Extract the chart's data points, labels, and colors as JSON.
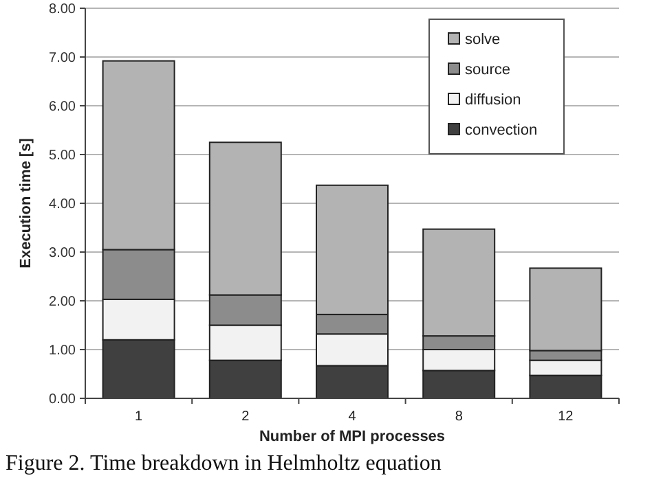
{
  "chart_data": {
    "type": "bar",
    "stacked": true,
    "xlabel": "Number of MPI processes",
    "ylabel": "Execution time [s]",
    "categories": [
      "1",
      "2",
      "4",
      "8",
      "12"
    ],
    "series": [
      {
        "name": "convection",
        "color": "#404040",
        "values": [
          1.2,
          0.78,
          0.67,
          0.57,
          0.47
        ]
      },
      {
        "name": "diffusion",
        "color": "#f2f2f2",
        "values": [
          0.83,
          0.72,
          0.65,
          0.43,
          0.31
        ]
      },
      {
        "name": "source",
        "color": "#8c8c8c",
        "values": [
          1.02,
          0.62,
          0.4,
          0.28,
          0.2
        ]
      },
      {
        "name": "solve",
        "color": "#b3b3b3",
        "values": [
          3.87,
          3.13,
          2.65,
          2.19,
          1.69
        ]
      }
    ],
    "ylim": [
      0,
      8
    ],
    "yticks": [
      {
        "value": 0,
        "label": "0.00"
      },
      {
        "value": 1,
        "label": "1.00"
      },
      {
        "value": 2,
        "label": "2.00"
      },
      {
        "value": 3,
        "label": "3.00"
      },
      {
        "value": 4,
        "label": "4.00"
      },
      {
        "value": 5,
        "label": "5.00"
      },
      {
        "value": 6,
        "label": "6.00"
      },
      {
        "value": 7,
        "label": "7.00"
      },
      {
        "value": 8,
        "label": "8.00"
      }
    ],
    "grid": "y",
    "legend": "top right",
    "annotations": [
      "Figure 2. Time breakdown in Helmholtz equation"
    ]
  }
}
